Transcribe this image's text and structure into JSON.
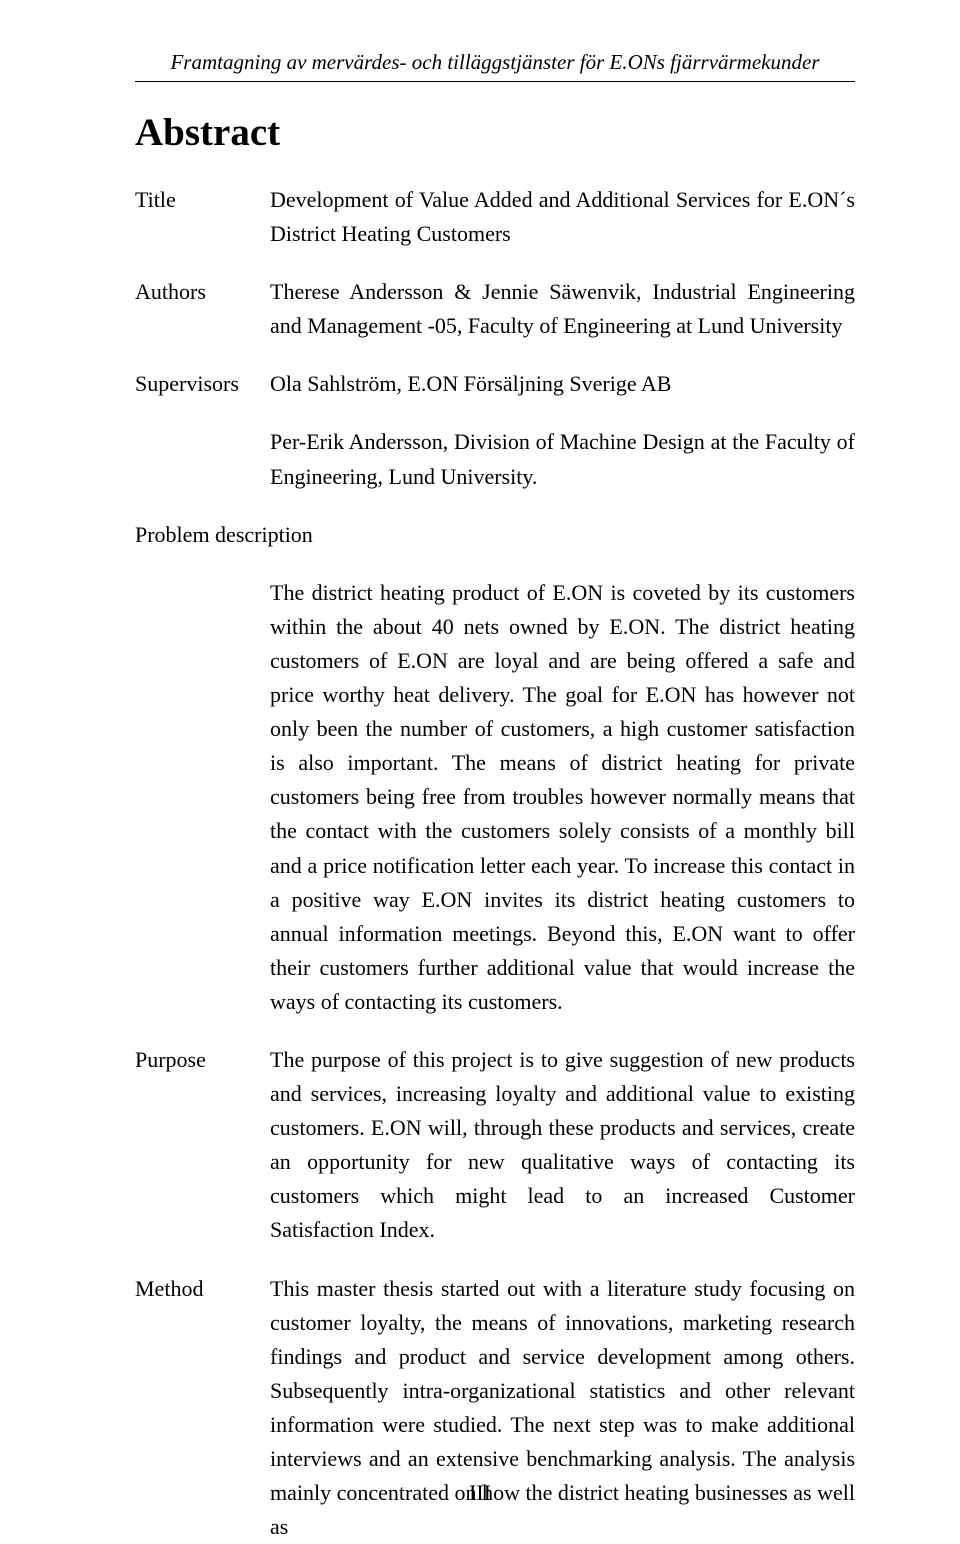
{
  "header": {
    "running_title": "Framtagning av mervärdes- och tilläggstjänster för E.ONs fjärrvärmekunder"
  },
  "section_heading": "Abstract",
  "rows": {
    "title": {
      "label": "Title",
      "text": "Development of Value Added and Additional Services for E.ON´s District Heating Customers"
    },
    "authors": {
      "label": "Authors",
      "text": "Therese Andersson & Jennie Säwenvik, Industrial Engineering and Management -05, Faculty of Engineering at Lund University"
    },
    "supervisors": {
      "label": "Supervisors",
      "text": "Ola Sahlström, E.ON Försäljning Sverige AB"
    },
    "supervisors_extra": "Per-Erik Andersson, Division of Machine Design at the Faculty of Engineering, Lund University.",
    "problem_label": "Problem description",
    "problem_text": "The district heating product of E.ON is coveted by its customers within the about 40 nets owned by E.ON. The district heating customers of E.ON are loyal and are being offered a safe and price worthy heat delivery. The goal for E.ON has however not only been the number of customers, a high customer satisfaction is also important. The means of district heating for private customers being free from troubles however normally means that the contact with the customers solely consists of a monthly bill and a price notification letter each year. To increase this contact in a positive way E.ON invites its district heating customers to annual information meetings. Beyond this, E.ON want to offer their customers further additional value that would increase the ways of contacting its customers.",
    "purpose": {
      "label": "Purpose",
      "text": "The purpose of this project is to give suggestion of new products and services, increasing loyalty and additional value to existing customers. E.ON will, through these products and services, create an opportunity for new qualitative ways of contacting its customers which might lead to an increased Customer Satisfaction Index."
    },
    "method": {
      "label": "Method",
      "text": "This master thesis started out with a literature study focusing on customer loyalty, the means of innovations, marketing research findings and product and service development among others. Subsequently intra-organizational statistics and other relevant information were studied.  The next step was to make additional interviews and an extensive benchmarking analysis.  The analysis mainly concentrated on how the district heating businesses as well as"
    }
  },
  "page_number": "III"
}
